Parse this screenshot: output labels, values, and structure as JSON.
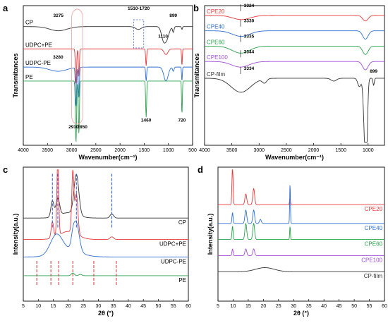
{
  "colors": {
    "black": "#333333",
    "red": "#e8373a",
    "blue": "#2f6fd1",
    "green": "#2aa24c",
    "purple": "#a04fd6",
    "highlight": "#f4a7a7",
    "highlight_green": "#9ed7a8",
    "dash_blue": "#2f56d8",
    "dash_red": "#d23030"
  },
  "chart_data": [
    {
      "panel": "a",
      "type": "line",
      "xlabel": "Wavenumber(cm⁻¹)",
      "ylabel": "Transmitances",
      "xlim": [
        4000,
        500
      ],
      "xticks": [
        4000,
        3500,
        3000,
        2500,
        2000,
        1500,
        1000,
        500
      ],
      "series": [
        {
          "name": "CP",
          "color": "black",
          "base": 0.85,
          "peaks": [
            [
              3275,
              0.03,
              180
            ],
            [
              1620,
              0.02,
              60
            ],
            [
              1110,
              0.07,
              40
            ],
            [
              1040,
              0.09,
              50
            ],
            [
              899,
              0.04,
              15
            ],
            [
              720,
              0.02,
              10
            ]
          ]
        },
        {
          "name": "UDPC+PE",
          "color": "red",
          "base": 0.69,
          "peaks": [
            [
              2910,
              0.25,
              12
            ],
            [
              2850,
              0.2,
              10
            ],
            [
              1460,
              0.12,
              10
            ],
            [
              720,
              0.12,
              8
            ],
            [
              1050,
              0.04,
              40
            ]
          ]
        },
        {
          "name": "UDPC-PE",
          "color": "blue",
          "base": 0.56,
          "peaks": [
            [
              3280,
              0.03,
              180
            ],
            [
              2910,
              0.28,
              12
            ],
            [
              2850,
              0.22,
              10
            ],
            [
              1460,
              0.1,
              10
            ],
            [
              1050,
              0.1,
              45
            ],
            [
              899,
              0.03,
              15
            ],
            [
              720,
              0.1,
              8
            ]
          ]
        },
        {
          "name": "PE",
          "color": "green",
          "base": 0.46,
          "peaks": [
            [
              2910,
              0.44,
              12
            ],
            [
              2850,
              0.38,
              10
            ],
            [
              1460,
              0.26,
              10
            ],
            [
              720,
              0.24,
              8
            ]
          ]
        }
      ],
      "annotations": [
        "3275",
        "3280",
        "1510-1720",
        "1110",
        "899",
        "1460",
        "720",
        "2910",
        "2850"
      ]
    },
    {
      "panel": "b",
      "type": "line",
      "xlabel": "Wavenumber(cm⁻¹)",
      "ylabel": "Transmitances",
      "xlim": [
        4000,
        700
      ],
      "xticks": [
        4000,
        3500,
        3000,
        2500,
        2000,
        1500,
        1000
      ],
      "series": [
        {
          "name": "CPE20",
          "color": "red",
          "base": 0.93,
          "peaks": [
            [
              3324,
              0.03,
              160
            ],
            [
              1050,
              0.04,
              50
            ]
          ]
        },
        {
          "name": "CPE40",
          "color": "blue",
          "base": 0.82,
          "peaks": [
            [
              3330,
              0.04,
              160
            ],
            [
              1050,
              0.06,
              50
            ]
          ]
        },
        {
          "name": "CPE60",
          "color": "green",
          "base": 0.71,
          "peaks": [
            [
              3335,
              0.05,
              160
            ],
            [
              1050,
              0.06,
              50
            ]
          ]
        },
        {
          "name": "CPE100",
          "color": "purple",
          "base": 0.6,
          "peaks": [
            [
              3344,
              0.04,
              160
            ],
            [
              1050,
              0.06,
              50
            ]
          ]
        },
        {
          "name": "CP-film",
          "color": "black",
          "base": 0.48,
          "peaks": [
            [
              3334,
              0.1,
              180
            ],
            [
              2900,
              0.03,
              40
            ],
            [
              1630,
              0.02,
              50
            ],
            [
              1160,
              0.06,
              30
            ],
            [
              1060,
              0.4,
              25
            ],
            [
              1030,
              0.45,
              20
            ],
            [
              899,
              0.05,
              12
            ]
          ]
        }
      ],
      "annotations": [
        "3324",
        "3330",
        "3335",
        "3344",
        "3334",
        "899"
      ]
    },
    {
      "panel": "c",
      "type": "line",
      "xlabel": "2θ (°)",
      "ylabel": "Intensity(a.u.)",
      "xlim": [
        5,
        60
      ],
      "xticks": [
        5,
        10,
        15,
        20,
        25,
        30,
        35,
        40,
        45,
        50,
        55,
        60
      ],
      "series": [
        {
          "name": "CP",
          "color": "black",
          "base": 0.62,
          "peaks": [
            [
              14.7,
              0.12,
              0.5
            ],
            [
              16.5,
              0.13,
              0.6
            ],
            [
              22.7,
              0.3,
              0.8
            ],
            [
              34.5,
              0.03,
              0.6
            ],
            [
              20,
              0.04,
              3
            ]
          ]
        },
        {
          "name": "UDPC+PE",
          "color": "red",
          "base": 0.46,
          "peaks": [
            [
              14.7,
              0.12,
              0.4
            ],
            [
              16.5,
              0.58,
              0.3
            ],
            [
              21.5,
              0.45,
              0.35
            ],
            [
              22.7,
              0.3,
              0.5
            ],
            [
              20,
              0.06,
              3
            ],
            [
              34.5,
              0.02,
              0.6
            ]
          ]
        },
        {
          "name": "UDPC-PE",
          "color": "blue",
          "base": 0.33,
          "peaks": [
            [
              16,
              0.14,
              2
            ],
            [
              21.5,
              0.05,
              0.5
            ],
            [
              22.6,
              0.22,
              1
            ],
            [
              20,
              0.05,
              4
            ]
          ]
        },
        {
          "name": "PE",
          "color": "green",
          "base": 0.19,
          "peaks": [
            [
              21.5,
              0.02,
              0.5
            ],
            [
              24,
              0.01,
              0.5
            ]
          ]
        }
      ],
      "annotations": []
    },
    {
      "panel": "d",
      "type": "line",
      "xlabel": "2θ (°)",
      "ylabel": "Intensity(a.u.)",
      "xlim": [
        5,
        60
      ],
      "xticks": [
        5,
        10,
        15,
        20,
        25,
        30,
        35,
        40,
        45,
        50,
        55,
        60
      ],
      "series": [
        {
          "name": "CPE20",
          "color": "red",
          "base": 0.72,
          "peaks": [
            [
              9.8,
              0.3,
              0.18
            ],
            [
              14.2,
              0.08,
              0.3
            ],
            [
              16.8,
              0.12,
              0.3
            ],
            [
              28.8,
              0.05,
              0.15
            ]
          ]
        },
        {
          "name": "CPE40",
          "color": "blue",
          "base": 0.58,
          "peaks": [
            [
              9.8,
              0.08,
              0.18
            ],
            [
              14.2,
              0.1,
              0.3
            ],
            [
              16.8,
              0.1,
              0.3
            ],
            [
              19,
              0.03,
              0.3
            ],
            [
              28.8,
              0.3,
              0.12
            ]
          ]
        },
        {
          "name": "CPE60",
          "color": "green",
          "base": 0.46,
          "peaks": [
            [
              9.8,
              0.1,
              0.18
            ],
            [
              14.2,
              0.12,
              0.3
            ],
            [
              16.8,
              0.12,
              0.3
            ],
            [
              28.8,
              0.1,
              0.12
            ]
          ]
        },
        {
          "name": "CPE100",
          "color": "purple",
          "base": 0.34,
          "peaks": [
            [
              9.8,
              0.05,
              0.18
            ],
            [
              14.2,
              0.05,
              0.3
            ],
            [
              16.8,
              0.05,
              0.3
            ]
          ]
        },
        {
          "name": "CP-film",
          "color": "black",
          "base": 0.22,
          "peaks": [
            [
              20.5,
              0.03,
              3
            ]
          ]
        }
      ],
      "annotations": []
    }
  ],
  "panel_labels": [
    "a",
    "b",
    "c",
    "d"
  ]
}
